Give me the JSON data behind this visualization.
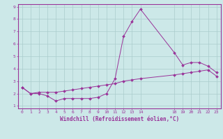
{
  "xlabel": "Windchill (Refroidissement éolien,°C)",
  "bg_color": "#cce8e8",
  "grid_color": "#aacccc",
  "line_color": "#993399",
  "xlim": [
    -0.5,
    23.5
  ],
  "ylim": [
    0.8,
    9.2
  ],
  "xticks": [
    0,
    1,
    2,
    3,
    4,
    5,
    6,
    7,
    8,
    9,
    10,
    11,
    12,
    13,
    14,
    18,
    19,
    20,
    21,
    22,
    23
  ],
  "yticks": [
    1,
    2,
    3,
    4,
    5,
    6,
    7,
    8,
    9
  ],
  "series1_x": [
    0,
    1,
    2,
    3,
    4,
    5,
    6,
    7,
    8,
    9,
    10,
    11,
    12,
    13,
    14,
    18,
    19,
    20,
    21,
    22,
    23
  ],
  "series1_y": [
    2.5,
    2.0,
    2.0,
    1.8,
    1.4,
    1.6,
    1.6,
    1.6,
    1.6,
    1.7,
    2.0,
    3.2,
    6.6,
    7.8,
    8.8,
    5.3,
    4.3,
    4.5,
    4.5,
    4.2,
    3.7
  ],
  "series2_x": [
    0,
    1,
    2,
    3,
    4,
    5,
    6,
    7,
    8,
    9,
    10,
    11,
    12,
    13,
    14,
    18,
    19,
    20,
    21,
    22,
    23
  ],
  "series2_y": [
    2.5,
    2.0,
    2.1,
    2.1,
    2.1,
    2.2,
    2.3,
    2.4,
    2.5,
    2.6,
    2.7,
    2.8,
    3.0,
    3.1,
    3.2,
    3.5,
    3.6,
    3.7,
    3.8,
    3.9,
    3.4
  ]
}
